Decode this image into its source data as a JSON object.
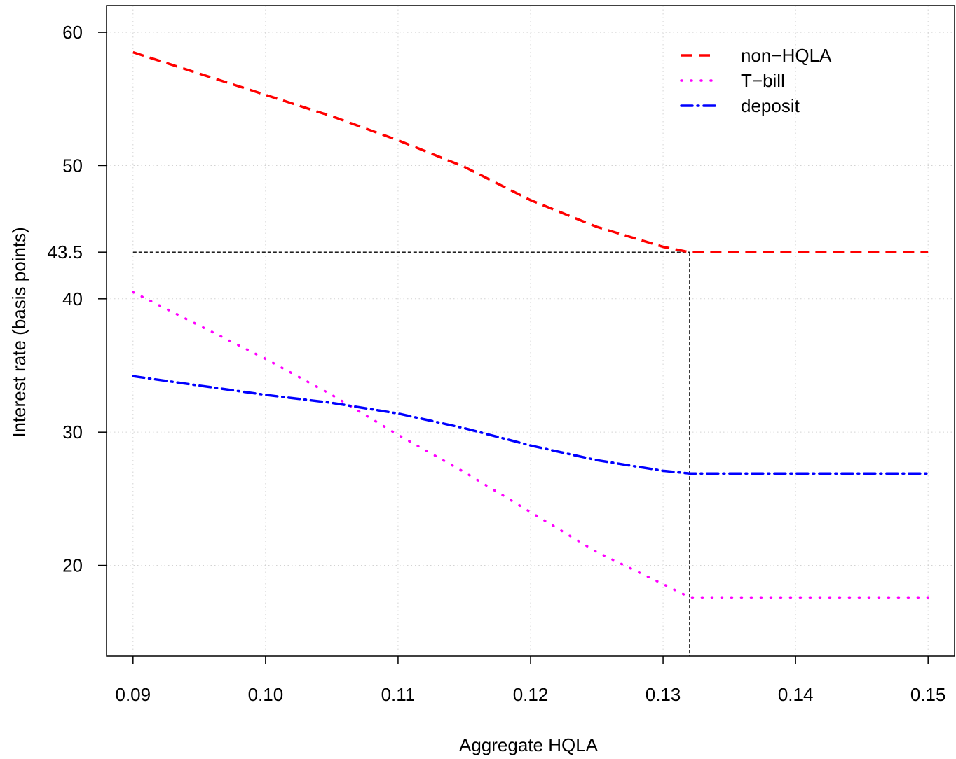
{
  "chart_data": {
    "type": "line",
    "title": "",
    "xlabel": "Aggregate HQLA",
    "ylabel": "Interest rate (basis points)",
    "xlim": [
      0.088,
      0.152
    ],
    "ylim": [
      13.2,
      62.0
    ],
    "x_ticks": [
      0.09,
      0.1,
      0.11,
      0.12,
      0.13,
      0.14,
      0.15
    ],
    "x_tick_labels": [
      "0.09",
      "0.10",
      "0.11",
      "0.12",
      "0.13",
      "0.14",
      "0.15"
    ],
    "y_ticks": [
      20,
      30,
      40,
      43.5,
      50,
      60
    ],
    "y_tick_labels": [
      "20",
      "30",
      "40",
      "43.5",
      "50",
      "60"
    ],
    "grid": true,
    "legend_position": "top-right",
    "series": [
      {
        "name": "non−HQLA",
        "color": "#ff0000",
        "line_style": "dashed",
        "x": [
          0.09,
          0.095,
          0.1,
          0.105,
          0.11,
          0.115,
          0.12,
          0.125,
          0.13,
          0.132,
          0.135,
          0.14,
          0.145,
          0.15
        ],
        "y": [
          58.5,
          56.9,
          55.3,
          53.7,
          51.9,
          49.9,
          47.4,
          45.4,
          43.9,
          43.5,
          43.5,
          43.5,
          43.5,
          43.5
        ]
      },
      {
        "name": "T−bill",
        "color": "#ff00ff",
        "line_style": "dotted",
        "x": [
          0.09,
          0.095,
          0.1,
          0.105,
          0.11,
          0.115,
          0.12,
          0.125,
          0.13,
          0.132,
          0.135,
          0.14,
          0.145,
          0.15
        ],
        "y": [
          40.5,
          38.0,
          35.5,
          32.8,
          29.8,
          27.0,
          24.0,
          21.0,
          18.6,
          17.6,
          17.6,
          17.6,
          17.6,
          17.6
        ]
      },
      {
        "name": "deposit",
        "color": "#0000ff",
        "line_style": "dashdot",
        "x": [
          0.09,
          0.095,
          0.1,
          0.105,
          0.11,
          0.115,
          0.12,
          0.125,
          0.13,
          0.132,
          0.135,
          0.14,
          0.145,
          0.15
        ],
        "y": [
          34.2,
          33.5,
          32.8,
          32.2,
          31.4,
          30.3,
          29.0,
          27.9,
          27.1,
          26.9,
          26.9,
          26.9,
          26.9,
          26.9
        ]
      }
    ],
    "reference_lines": {
      "horizontal_y": 43.5,
      "vertical_x": 0.132,
      "color": "#000000",
      "line_style": "dashed"
    }
  }
}
